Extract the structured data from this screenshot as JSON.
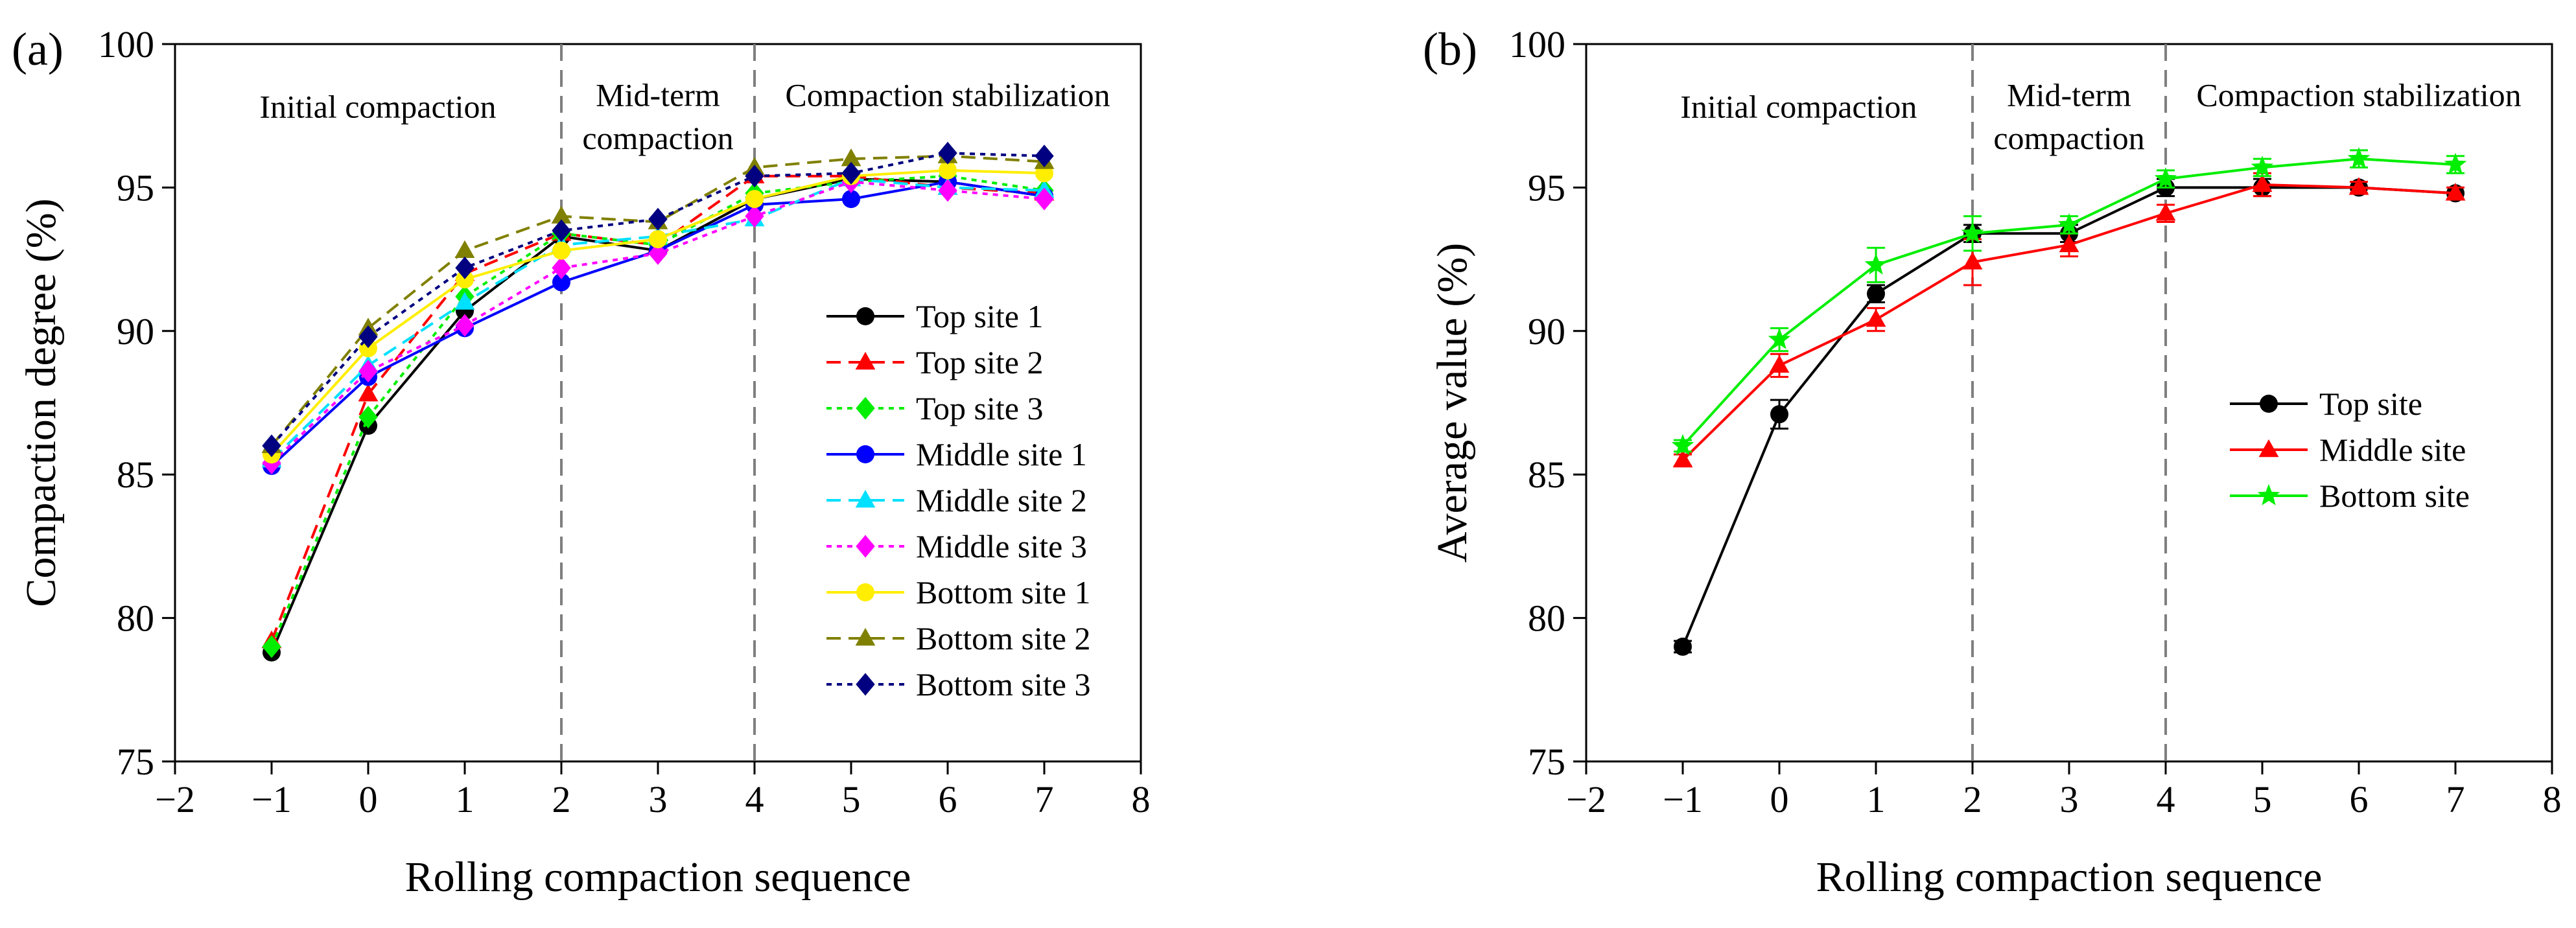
{
  "chart_data": [
    {
      "panel_label": "(a)",
      "type": "line",
      "xlabel": "Rolling compaction sequence",
      "ylabel": "Compaction degree (%)",
      "xlim": [
        -2,
        8
      ],
      "ylim": [
        75,
        100
      ],
      "xticks": [
        -2,
        -1,
        0,
        1,
        2,
        3,
        4,
        5,
        6,
        7,
        8
      ],
      "yticks": [
        75,
        80,
        85,
        90,
        95,
        100
      ],
      "x": [
        -1,
        0,
        1,
        2,
        3,
        4,
        5,
        6,
        7
      ],
      "vlines": [
        2,
        4
      ],
      "regions": [
        {
          "label": "Initial compaction",
          "x_center": 0.1,
          "y": 97.8
        },
        {
          "label": "Mid-term",
          "x_center": 3.0,
          "y": 98.2
        },
        {
          "label": "compaction",
          "x_center": 3.0,
          "y": 96.7
        },
        {
          "label": "Compaction stabilization",
          "x_center": 6.0,
          "y": 98.2
        }
      ],
      "legend_position": "center-right",
      "series": [
        {
          "name": "Top site 1",
          "color": "#000000",
          "dash": "solid",
          "marker": "circle",
          "values": [
            78.8,
            86.7,
            90.7,
            93.3,
            92.8,
            94.6,
            95.3,
            95.2,
            94.7
          ]
        },
        {
          "name": "Top site 2",
          "color": "#ff0000",
          "dash": "dashed",
          "marker": "triangle",
          "values": [
            79.2,
            87.8,
            92.0,
            93.4,
            93.0,
            95.4,
            95.4,
            95.0,
            94.8
          ]
        },
        {
          "name": "Top site 3",
          "color": "#00ee00",
          "dash": "dotted",
          "marker": "diamond",
          "values": [
            79.0,
            87.0,
            91.2,
            93.4,
            93.0,
            94.8,
            95.2,
            95.4,
            94.9
          ]
        },
        {
          "name": "Middle site 1",
          "color": "#0000ff",
          "dash": "solid",
          "marker": "circle",
          "values": [
            85.3,
            88.4,
            90.1,
            91.7,
            92.8,
            94.4,
            94.6,
            95.2,
            94.7
          ]
        },
        {
          "name": "Middle site 2",
          "color": "#00e0ff",
          "dash": "dashed",
          "marker": "triangle",
          "values": [
            85.5,
            88.8,
            91.0,
            93.0,
            93.3,
            93.9,
            95.3,
            95.0,
            94.9
          ]
        },
        {
          "name": "Middle site 3",
          "color": "#ff00ff",
          "dash": "dotted",
          "marker": "diamond",
          "values": [
            85.4,
            88.6,
            90.2,
            92.2,
            92.7,
            94.0,
            95.2,
            94.9,
            94.6
          ]
        },
        {
          "name": "Bottom site 1",
          "color": "#ffee00",
          "dash": "solid",
          "marker": "circle",
          "values": [
            85.7,
            89.4,
            91.8,
            92.8,
            93.2,
            94.6,
            95.4,
            95.6,
            95.5
          ]
        },
        {
          "name": "Bottom site 2",
          "color": "#808000",
          "dash": "dashed",
          "marker": "triangle",
          "values": [
            86.0,
            90.1,
            92.8,
            94.0,
            93.8,
            95.7,
            96.0,
            96.1,
            95.9
          ]
        },
        {
          "name": "Bottom site 3",
          "color": "#000080",
          "dash": "dotted",
          "marker": "diamond",
          "values": [
            86.0,
            89.8,
            92.2,
            93.5,
            93.9,
            95.4,
            95.5,
            96.2,
            96.1
          ]
        }
      ]
    },
    {
      "panel_label": "(b)",
      "type": "line",
      "xlabel": "Rolling compaction sequence",
      "ylabel": "Average value (%)",
      "xlim": [
        -2,
        8
      ],
      "ylim": [
        75,
        100
      ],
      "xticks": [
        -2,
        -1,
        0,
        1,
        2,
        3,
        4,
        5,
        6,
        7,
        8
      ],
      "yticks": [
        75,
        80,
        85,
        90,
        95,
        100
      ],
      "x": [
        -1,
        0,
        1,
        2,
        3,
        4,
        5,
        6,
        7
      ],
      "vlines": [
        2,
        4
      ],
      "regions": [
        {
          "label": "Initial compaction",
          "x_center": 0.2,
          "y": 97.8
        },
        {
          "label": "Mid-term",
          "x_center": 3.0,
          "y": 98.2
        },
        {
          "label": "compaction",
          "x_center": 3.0,
          "y": 96.7
        },
        {
          "label": "Compaction stabilization",
          "x_center": 6.0,
          "y": 98.2
        }
      ],
      "legend_position": "center-right",
      "series": [
        {
          "name": "Top site",
          "color": "#000000",
          "dash": "solid",
          "marker": "circle",
          "values": [
            79.0,
            87.1,
            91.3,
            93.4,
            93.4,
            95.0,
            95.0,
            95.0,
            94.8
          ],
          "errors": [
            0.2,
            0.5,
            0.3,
            0.3,
            0.3,
            0.3,
            0.3,
            0.2,
            0.2
          ]
        },
        {
          "name": "Middle site",
          "color": "#ff0000",
          "dash": "solid",
          "marker": "triangle",
          "values": [
            85.5,
            88.8,
            90.4,
            92.4,
            93.0,
            94.1,
            95.1,
            95.0,
            94.8
          ],
          "errors": [
            0.2,
            0.4,
            0.4,
            0.8,
            0.4,
            0.3,
            0.4,
            0.2,
            0.2
          ]
        },
        {
          "name": "Bottom site",
          "color": "#00ee00",
          "dash": "solid",
          "marker": "star",
          "values": [
            86.0,
            89.7,
            92.3,
            93.4,
            93.7,
            95.3,
            95.7,
            96.0,
            95.8
          ],
          "errors": [
            0.2,
            0.4,
            0.6,
            0.6,
            0.3,
            0.3,
            0.3,
            0.3,
            0.3
          ]
        }
      ]
    }
  ]
}
